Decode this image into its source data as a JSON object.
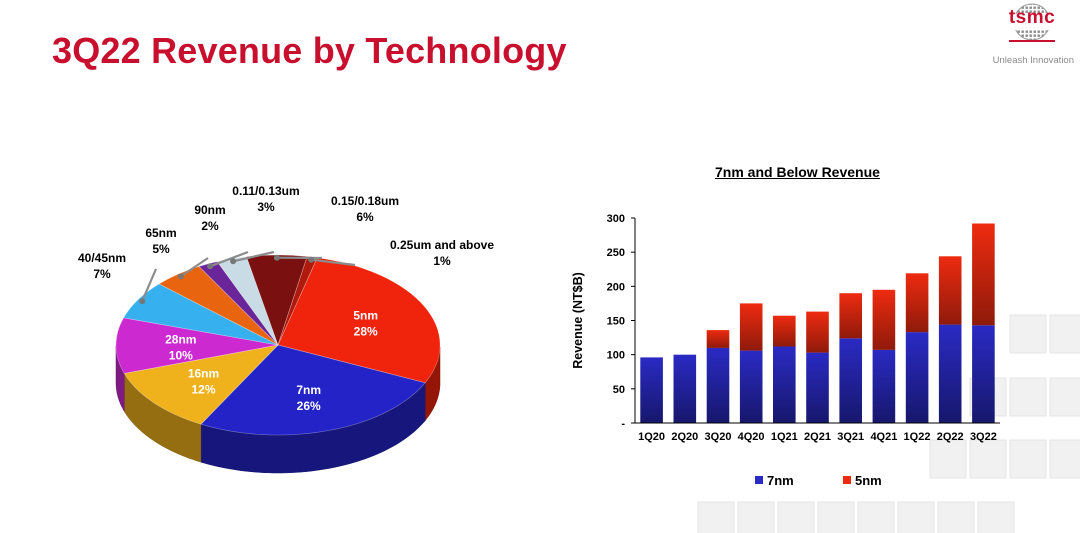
{
  "slide": {
    "title": "3Q22 Revenue by Technology",
    "logo_text": "tsmc",
    "tagline": "Unleash Innovation"
  },
  "colors": {
    "title_red": "#c8102e",
    "bar_7nm": "#2a2ac4",
    "bar_5nm": "#ee2b10"
  },
  "chart_data": [
    {
      "type": "pie",
      "title": "",
      "slices": [
        {
          "label": "5nm",
          "value": 28,
          "pct_text": "28%",
          "color": "#f0230c",
          "label_color": "#ffffff"
        },
        {
          "label": "7nm",
          "value": 26,
          "pct_text": "26%",
          "color": "#2323c8",
          "label_color": "#ffffff"
        },
        {
          "label": "16nm",
          "value": 12,
          "pct_text": "12%",
          "color": "#f0b21c",
          "label_color": "#ffffff"
        },
        {
          "label": "28nm",
          "value": 10,
          "pct_text": "10%",
          "color": "#cc2ad0",
          "label_color": "#ffffff"
        },
        {
          "label": "40/45nm",
          "value": 7,
          "pct_text": "7%",
          "color": "#36b0ee",
          "label_color": "#000000"
        },
        {
          "label": "65nm",
          "value": 5,
          "pct_text": "5%",
          "color": "#e8640e",
          "label_color": "#000000"
        },
        {
          "label": "90nm",
          "value": 2,
          "pct_text": "2%",
          "color": "#6a2699",
          "label_color": "#000000"
        },
        {
          "label": "0.11/0.13um",
          "value": 3,
          "pct_text": "3%",
          "color": "#c9dce6",
          "label_color": "#000000"
        },
        {
          "label": "0.15/0.18um",
          "value": 6,
          "pct_text": "6%",
          "color": "#7a1010",
          "label_color": "#000000"
        },
        {
          "label": "0.25um and above",
          "value": 1,
          "pct_text": "1%",
          "color": "#b01a0c",
          "label_color": "#000000"
        }
      ]
    },
    {
      "type": "bar",
      "stacked": true,
      "title": "7nm and Below Revenue",
      "ylabel": "Revenue (NT$B)",
      "ylim": [
        0,
        300
      ],
      "yticks": [
        0,
        50,
        100,
        150,
        200,
        250,
        300
      ],
      "ytick_labels": [
        "-",
        "50",
        "100",
        "150",
        "200",
        "250",
        "300"
      ],
      "categories": [
        "1Q20",
        "2Q20",
        "3Q20",
        "4Q20",
        "1Q21",
        "2Q21",
        "3Q21",
        "4Q21",
        "1Q22",
        "2Q22",
        "3Q22"
      ],
      "series": [
        {
          "name": "7nm",
          "values": [
            96,
            100,
            110,
            106,
            112,
            103,
            124,
            107,
            133,
            144,
            143
          ]
        },
        {
          "name": "5nm",
          "values": [
            0,
            0,
            26,
            69,
            45,
            60,
            66,
            88,
            86,
            100,
            149
          ]
        }
      ],
      "legend_position": "bottom"
    }
  ]
}
